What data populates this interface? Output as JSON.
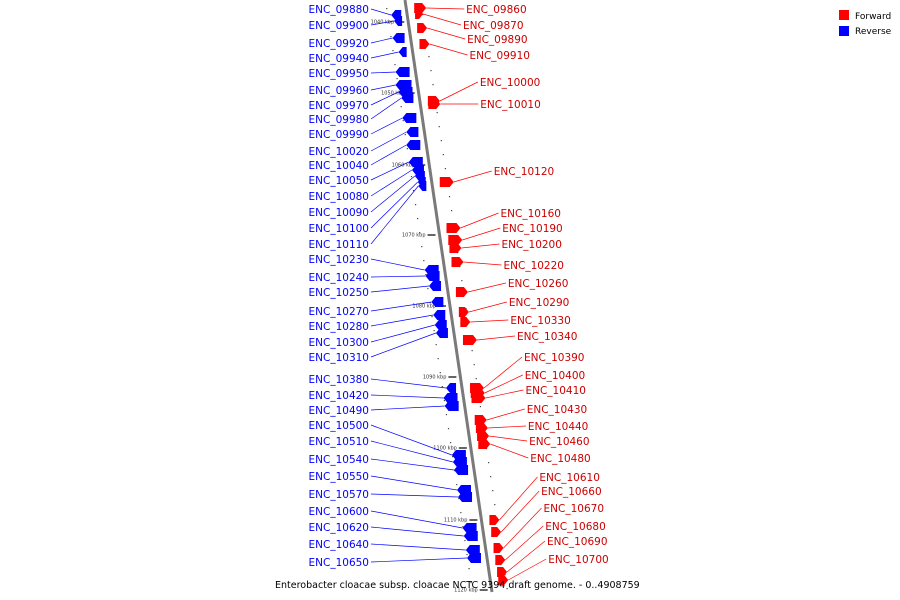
{
  "caption": "Enterobacter cloacae subsp. cloacae NCTC 9394 draft genome. - 0..4908759",
  "legend": [
    {
      "label": "Forward",
      "color": "#ff0000"
    },
    {
      "label": "Reverse",
      "color": "#0000ff"
    }
  ],
  "colors": {
    "forward": "#ff0000",
    "reverse": "#0000ff",
    "axis": "#7a7a7a"
  },
  "scale_marks": [
    "1040 kbp",
    "1050 kbp",
    "1060 kbp",
    "1070 kbp",
    "1080 kbp",
    "1090 kbp",
    "1100 kbp",
    "1110 kbp",
    "1120 kbp"
  ],
  "reverse_labels": [
    "ENC_09880",
    "ENC_09900",
    "ENC_09920",
    "ENC_09940",
    "ENC_09950",
    "ENC_09960",
    "ENC_09970",
    "ENC_09980",
    "ENC_09990",
    "ENC_10020",
    "ENC_10040",
    "ENC_10050",
    "ENC_10080",
    "ENC_10090",
    "ENC_10100",
    "ENC_10110",
    "ENC_10230",
    "ENC_10240",
    "ENC_10250",
    "ENC_10270",
    "ENC_10280",
    "ENC_10300",
    "ENC_10310",
    "ENC_10380",
    "ENC_10420",
    "ENC_10490",
    "ENC_10500",
    "ENC_10510",
    "ENC_10540",
    "ENC_10550",
    "ENC_10570",
    "ENC_10600",
    "ENC_10620",
    "ENC_10640",
    "ENC_10650"
  ],
  "forward_labels": [
    "ENC_09860",
    "ENC_09870",
    "ENC_09890",
    "ENC_09910",
    "ENC_10000",
    "ENC_10010",
    "ENC_10120",
    "ENC_10160",
    "ENC_10190",
    "ENC_10200",
    "ENC_10220",
    "ENC_10260",
    "ENC_10290",
    "ENC_10330",
    "ENC_10340",
    "ENC_10390",
    "ENC_10400",
    "ENC_10410",
    "ENC_10430",
    "ENC_10440",
    "ENC_10460",
    "ENC_10480",
    "ENC_10610",
    "ENC_10660",
    "ENC_10670",
    "ENC_10680",
    "ENC_10690",
    "ENC_10700"
  ]
}
